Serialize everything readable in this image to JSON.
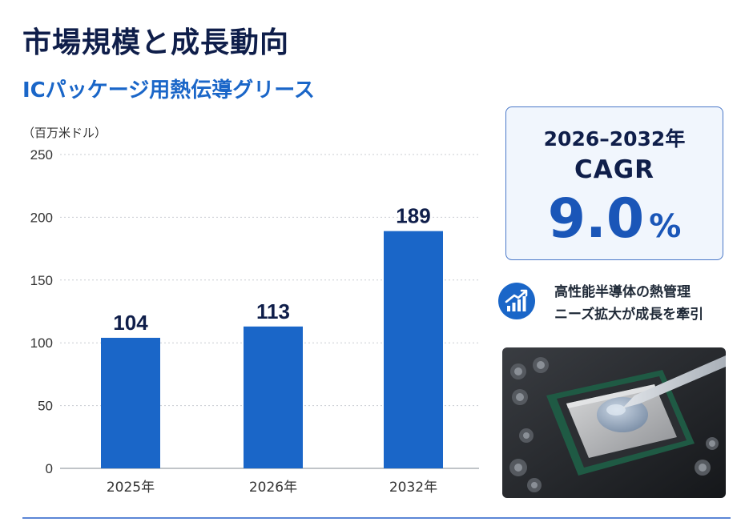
{
  "header": {
    "title": "市場規模と成長動向",
    "subtitle": "ICパッケージ用熱伝導グリース"
  },
  "chart_data": {
    "type": "bar",
    "unit_label": "（百万米ドル）",
    "categories": [
      "2025年",
      "2026年",
      "2032年"
    ],
    "values": [
      104,
      113,
      189
    ],
    "value_labels": [
      "104",
      "113",
      "189"
    ],
    "ylim": [
      0,
      250
    ],
    "yticks": [
      0,
      50,
      100,
      150,
      200,
      250
    ],
    "grid": true,
    "bar_color": "#1a66c8"
  },
  "cagr": {
    "period": "2026–2032年",
    "label": "CAGR",
    "value": "9.0",
    "unit": "%"
  },
  "driver": {
    "icon": "growth-chart-icon",
    "line1": "高性能半導体の熱管理",
    "line2": "ニーズ拡大が成長を牽引"
  },
  "photo": {
    "icon": "cpu-thermal-grease-image"
  },
  "colors": {
    "title": "#0f1e4a",
    "accent": "#1a66c8",
    "cagr_value": "#1a56b8"
  }
}
